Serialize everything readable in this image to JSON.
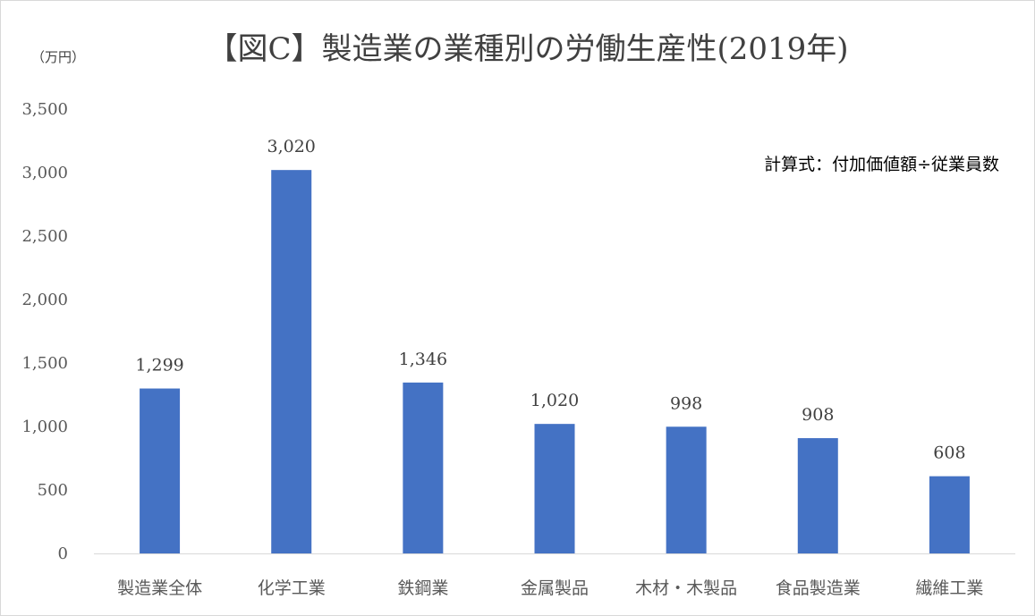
{
  "chart_data": {
    "type": "bar",
    "title": "【図C】製造業の業種別の労働生産性(2019年)",
    "unit_label": "（万円）",
    "annotation": "計算式：付加価値額÷従業員数",
    "categories": [
      "製造業全体",
      "化学工業",
      "鉄鋼業",
      "金属製品",
      "木材・木製品",
      "食品製造業",
      "繊維工業"
    ],
    "values": [
      1299,
      3020,
      1346,
      1020,
      998,
      908,
      608
    ],
    "data_labels": [
      "1,299",
      "3,020",
      "1,346",
      "1,020",
      "998",
      "908",
      "608"
    ],
    "y_ticks": [
      "0",
      "500",
      "1,000",
      "1,500",
      "2,000",
      "2,500",
      "3,000",
      "3,500"
    ],
    "y_tick_values": [
      0,
      500,
      1000,
      1500,
      2000,
      2500,
      3000,
      3500
    ],
    "ylim": [
      0,
      3500
    ],
    "grid": false,
    "legend": "none",
    "bar_color": "#4472c4",
    "axis_color": "#d9d9d9"
  }
}
